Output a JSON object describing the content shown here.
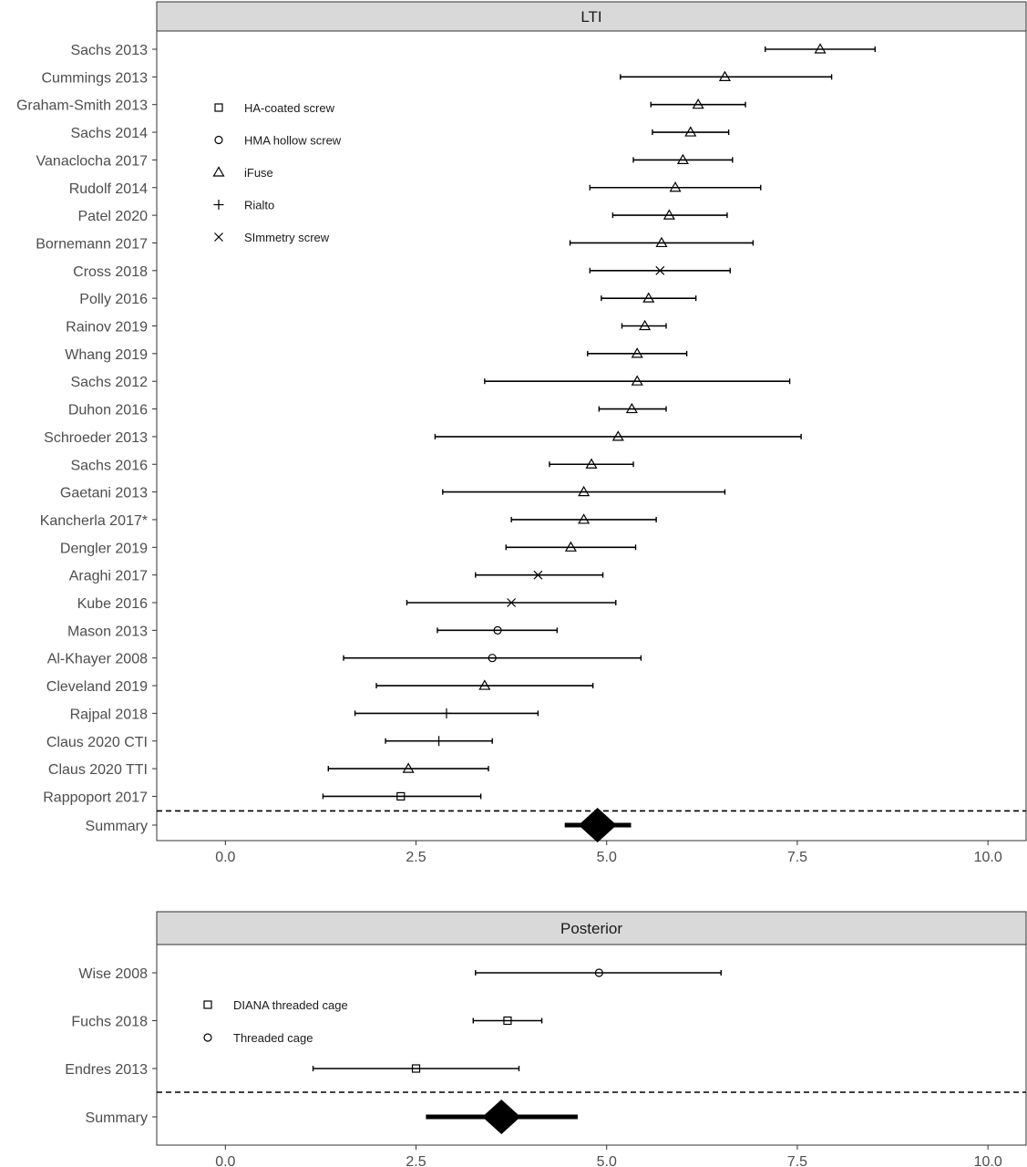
{
  "chart_data": [
    {
      "type": "forest",
      "facet_title": "LTI",
      "xlim": [
        -0.9,
        10.5
      ],
      "x_ticks": [
        0.0,
        2.5,
        5.0,
        7.5,
        10.0
      ],
      "x_tick_labels": [
        "0.0",
        "2.5",
        "5.0",
        "7.5",
        "10.0"
      ],
      "legend": {
        "placement": "top-left inside",
        "entries": [
          {
            "label": "HA-coated screw",
            "shape": "square"
          },
          {
            "label": "HMA hollow screw",
            "shape": "circle"
          },
          {
            "label": "iFuse",
            "shape": "triangle"
          },
          {
            "label": "Rialto",
            "shape": "plus"
          },
          {
            "label": "SImmetry screw",
            "shape": "cross"
          }
        ]
      },
      "studies": [
        {
          "label": "Sachs 2013",
          "est": 7.8,
          "lo": 7.08,
          "hi": 8.52,
          "shape": "triangle"
        },
        {
          "label": "Cummings 2013",
          "est": 6.55,
          "lo": 5.18,
          "hi": 7.95,
          "shape": "triangle"
        },
        {
          "label": "Graham-Smith 2013",
          "est": 6.2,
          "lo": 5.58,
          "hi": 6.82,
          "shape": "triangle"
        },
        {
          "label": "Sachs 2014",
          "est": 6.1,
          "lo": 5.6,
          "hi": 6.6,
          "shape": "triangle"
        },
        {
          "label": "Vanaclocha 2017",
          "est": 6.0,
          "lo": 5.35,
          "hi": 6.65,
          "shape": "triangle"
        },
        {
          "label": "Rudolf 2014",
          "est": 5.9,
          "lo": 4.78,
          "hi": 7.02,
          "shape": "triangle"
        },
        {
          "label": "Patel 2020",
          "est": 5.82,
          "lo": 5.08,
          "hi": 6.58,
          "shape": "triangle"
        },
        {
          "label": "Bornemann 2017",
          "est": 5.72,
          "lo": 4.52,
          "hi": 6.92,
          "shape": "triangle"
        },
        {
          "label": "Cross 2018",
          "est": 5.7,
          "lo": 4.78,
          "hi": 6.62,
          "shape": "cross"
        },
        {
          "label": "Polly 2016",
          "est": 5.55,
          "lo": 4.93,
          "hi": 6.17,
          "shape": "triangle"
        },
        {
          "label": "Rainov 2019",
          "est": 5.5,
          "lo": 5.2,
          "hi": 5.78,
          "shape": "triangle"
        },
        {
          "label": "Whang 2019",
          "est": 5.4,
          "lo": 4.75,
          "hi": 6.05,
          "shape": "triangle"
        },
        {
          "label": "Sachs 2012",
          "est": 5.4,
          "lo": 3.4,
          "hi": 7.4,
          "shape": "triangle"
        },
        {
          "label": "Duhon 2016",
          "est": 5.33,
          "lo": 4.9,
          "hi": 5.78,
          "shape": "triangle"
        },
        {
          "label": "Schroeder 2013",
          "est": 5.15,
          "lo": 2.75,
          "hi": 7.55,
          "shape": "triangle"
        },
        {
          "label": "Sachs 2016",
          "est": 4.8,
          "lo": 4.25,
          "hi": 5.35,
          "shape": "triangle"
        },
        {
          "label": "Gaetani 2013",
          "est": 4.7,
          "lo": 2.85,
          "hi": 6.55,
          "shape": "triangle"
        },
        {
          "label": "Kancherla 2017*",
          "est": 4.7,
          "lo": 3.75,
          "hi": 5.65,
          "shape": "triangle"
        },
        {
          "label": "Dengler 2019",
          "est": 4.53,
          "lo": 3.68,
          "hi": 5.38,
          "shape": "triangle"
        },
        {
          "label": "Araghi 2017",
          "est": 4.1,
          "lo": 3.28,
          "hi": 4.95,
          "shape": "cross"
        },
        {
          "label": "Kube 2016",
          "est": 3.75,
          "lo": 2.38,
          "hi": 5.12,
          "shape": "cross"
        },
        {
          "label": "Mason 2013",
          "est": 3.57,
          "lo": 2.78,
          "hi": 4.35,
          "shape": "circle"
        },
        {
          "label": "Al-Khayer 2008",
          "est": 3.5,
          "lo": 1.55,
          "hi": 5.45,
          "shape": "circle"
        },
        {
          "label": "Cleveland 2019",
          "est": 3.4,
          "lo": 1.98,
          "hi": 4.82,
          "shape": "triangle"
        },
        {
          "label": "Rajpal 2018",
          "est": 2.9,
          "lo": 1.7,
          "hi": 4.1,
          "shape": "plus"
        },
        {
          "label": "Claus 2020 CTI",
          "est": 2.8,
          "lo": 2.1,
          "hi": 3.5,
          "shape": "plus"
        },
        {
          "label": "Claus 2020 TTI",
          "est": 2.4,
          "lo": 1.35,
          "hi": 3.45,
          "shape": "triangle"
        },
        {
          "label": "Rappoport 2017",
          "est": 2.3,
          "lo": 1.28,
          "hi": 3.35,
          "shape": "square"
        }
      ],
      "summary": {
        "label": "Summary",
        "est": 4.88,
        "lo": 4.45,
        "hi": 5.32
      }
    },
    {
      "type": "forest",
      "facet_title": "Posterior",
      "xlim": [
        -0.9,
        10.5
      ],
      "x_ticks": [
        0.0,
        2.5,
        5.0,
        7.5,
        10.0
      ],
      "x_tick_labels": [
        "0.0",
        "2.5",
        "5.0",
        "7.5",
        "10.0"
      ],
      "legend": {
        "placement": "left inside",
        "entries": [
          {
            "label": "DIANA threaded cage",
            "shape": "square"
          },
          {
            "label": "Threaded cage",
            "shape": "circle"
          }
        ]
      },
      "studies": [
        {
          "label": "Wise 2008",
          "est": 4.9,
          "lo": 3.28,
          "hi": 6.5,
          "shape": "circle"
        },
        {
          "label": "Fuchs 2018",
          "est": 3.7,
          "lo": 3.25,
          "hi": 4.15,
          "shape": "square"
        },
        {
          "label": "Endres 2013",
          "est": 2.5,
          "lo": 1.15,
          "hi": 3.85,
          "shape": "square"
        }
      ],
      "summary": {
        "label": "Summary",
        "est": 3.62,
        "lo": 2.63,
        "hi": 4.62
      }
    }
  ]
}
